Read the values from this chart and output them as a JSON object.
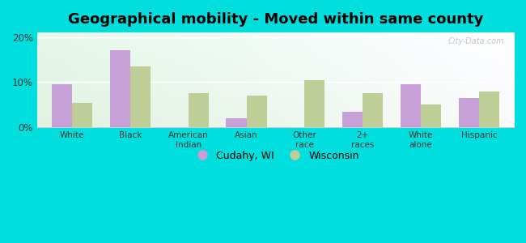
{
  "title": "Geographical mobility - Moved within same county",
  "categories": [
    "White",
    "Black",
    "American\nIndian",
    "Asian",
    "Other\nrace",
    "2+\nraces",
    "White\nalone",
    "Hispanic"
  ],
  "cudahy": [
    9.5,
    17.0,
    0.0,
    2.0,
    0.0,
    3.5,
    9.5,
    6.5
  ],
  "wisconsin": [
    5.5,
    13.5,
    7.5,
    7.0,
    10.5,
    7.5,
    5.0,
    8.0
  ],
  "cudahy_color": "#c8a0d8",
  "wisconsin_color": "#bece96",
  "outer_bg": "#00dede",
  "plot_bg_colors": [
    "#d6e8c8",
    "#eef5e8",
    "#f5f8f0",
    "#f0f8f5"
  ],
  "ylim": [
    0,
    21
  ],
  "yticks": [
    0,
    10,
    20
  ],
  "ytick_labels": [
    "0%",
    "10%",
    "20%"
  ],
  "legend_cudahy": "Cudahy, WI",
  "legend_wisconsin": "Wisconsin",
  "bar_width": 0.35,
  "title_fontsize": 13,
  "watermark": "City-Data.com"
}
